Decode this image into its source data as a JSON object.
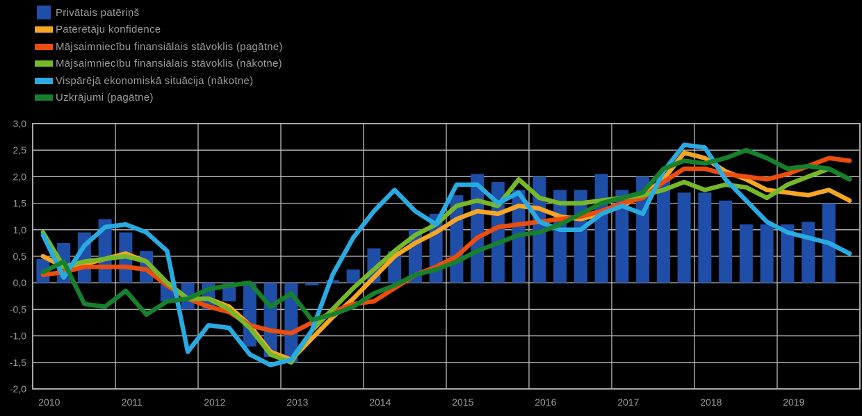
{
  "legend": {
    "items": [
      {
        "label": "Privātais patēriņš",
        "color": "#1F4EA8",
        "marker": "bar"
      },
      {
        "label": "Patērētāju konfidence",
        "color": "#F5A623",
        "marker": "line"
      },
      {
        "label": "Mājsaimniecību finansiālais stāvoklis (pagātne)",
        "color": "#EC4D0E",
        "marker": "line"
      },
      {
        "label": "Mājsaimniecību finansiālais stāvoklis (nākotne)",
        "color": "#76B82A",
        "marker": "line"
      },
      {
        "label": "Vispārējā ekonomiskā situācija (nākotne)",
        "color": "#29ABE2",
        "marker": "line"
      },
      {
        "label": "Uzkrājumi (pagātne)",
        "color": "#17802D",
        "marker": "line"
      }
    ]
  },
  "chart_data": {
    "type": "bar",
    "subtype": "combo-bar-line",
    "frequency": "quarterly",
    "x_years": [
      "2010",
      "2011",
      "2012",
      "2013",
      "2014",
      "2015",
      "2016",
      "2017",
      "2018",
      "2019"
    ],
    "ylim": [
      -2.0,
      3.0
    ],
    "ytick_step": 0.5,
    "ytick_labels": [
      "3,0",
      "2,5",
      "2,0",
      "1,5",
      "1,0",
      "0,5",
      "0,0",
      "-0,5",
      "-1,0",
      "-1,5",
      "-2,0"
    ],
    "grid": true,
    "legend_position": "top-left",
    "background": "#000000",
    "gridline_color": "#bdbdbd",
    "text_color": "#9c9c9c",
    "series": [
      {
        "name": "Privātais patēriņš",
        "type": "bar",
        "color": "#1F4EA8",
        "values": [
          0.45,
          0.75,
          0.95,
          1.2,
          0.95,
          0.6,
          -0.35,
          -0.5,
          -0.5,
          -0.35,
          -1.2,
          -1.4,
          -1.5,
          -0.05,
          0.05,
          0.25,
          0.65,
          0.6,
          1.0,
          1.3,
          1.65,
          2.05,
          1.9,
          1.75,
          2.0,
          1.75,
          1.75,
          2.05,
          1.75,
          2.0,
          2.0,
          1.7,
          1.7,
          1.55,
          1.1,
          1.1,
          1.1,
          1.15,
          1.5,
          null
        ]
      },
      {
        "name": "Patērētāju konfidence",
        "type": "line",
        "color": "#F5A623",
        "values": [
          0.5,
          0.3,
          0.35,
          0.45,
          0.55,
          0.4,
          0.0,
          -0.3,
          -0.3,
          -0.45,
          -0.8,
          -1.3,
          -1.45,
          -1.05,
          -0.65,
          -0.3,
          0.1,
          0.5,
          0.75,
          0.95,
          1.2,
          1.35,
          1.3,
          1.45,
          1.4,
          1.25,
          1.2,
          1.3,
          1.45,
          1.65,
          1.95,
          2.45,
          2.35,
          2.1,
          1.95,
          1.75,
          1.7,
          1.65,
          1.75,
          1.55
        ]
      },
      {
        "name": "Mājsaimniecību finansiālais stāvoklis (pagātne)",
        "type": "line",
        "color": "#EC4D0E",
        "values": [
          0.15,
          0.2,
          0.3,
          0.3,
          0.3,
          0.25,
          -0.05,
          -0.3,
          -0.45,
          -0.55,
          -0.8,
          -0.9,
          -0.95,
          -0.75,
          -0.55,
          -0.4,
          -0.35,
          -0.1,
          0.15,
          0.3,
          0.5,
          0.85,
          1.05,
          1.1,
          1.15,
          1.2,
          1.25,
          1.35,
          1.5,
          1.6,
          1.9,
          2.15,
          2.15,
          2.05,
          2.0,
          1.95,
          2.05,
          2.2,
          2.35,
          2.3
        ]
      },
      {
        "name": "Mājsaimniecību finansiālais stāvoklis (nākotne)",
        "type": "line",
        "color": "#76B82A",
        "values": [
          0.95,
          0.3,
          0.4,
          0.45,
          0.5,
          0.4,
          0.0,
          -0.3,
          -0.3,
          -0.5,
          -0.85,
          -1.35,
          -1.5,
          -0.9,
          -0.5,
          -0.1,
          0.25,
          0.6,
          0.9,
          1.1,
          1.45,
          1.55,
          1.45,
          1.95,
          1.6,
          1.5,
          1.5,
          1.55,
          1.6,
          1.65,
          1.75,
          1.9,
          1.75,
          1.85,
          1.8,
          1.6,
          1.85,
          2.0,
          2.15,
          1.95
        ]
      },
      {
        "name": "Vispārējā ekonomiskā situācija (nākotne)",
        "type": "line",
        "color": "#29ABE2",
        "values": [
          0.9,
          0.1,
          0.7,
          1.05,
          1.1,
          0.95,
          0.6,
          -1.3,
          -0.8,
          -0.85,
          -1.35,
          -1.55,
          -1.45,
          -0.9,
          0.15,
          0.85,
          1.35,
          1.75,
          1.35,
          1.1,
          1.85,
          1.85,
          1.5,
          1.7,
          1.15,
          1.0,
          1.0,
          1.3,
          1.45,
          1.3,
          2.1,
          2.6,
          2.55,
          1.95,
          1.55,
          1.15,
          0.95,
          0.85,
          0.75,
          0.55
        ]
      },
      {
        "name": "Uzkrājumi (pagātne)",
        "type": "line",
        "color": "#17802D",
        "values": [
          0.2,
          0.4,
          -0.4,
          -0.45,
          -0.15,
          -0.6,
          -0.35,
          -0.3,
          -0.12,
          -0.05,
          0.0,
          -0.45,
          -0.2,
          -0.7,
          -0.6,
          -0.45,
          -0.2,
          -0.05,
          0.15,
          0.25,
          0.4,
          0.6,
          0.75,
          0.9,
          0.95,
          1.1,
          1.3,
          1.5,
          1.6,
          1.7,
          2.15,
          2.3,
          2.25,
          2.35,
          2.5,
          2.35,
          2.15,
          2.2,
          2.15,
          1.95
        ]
      }
    ]
  }
}
